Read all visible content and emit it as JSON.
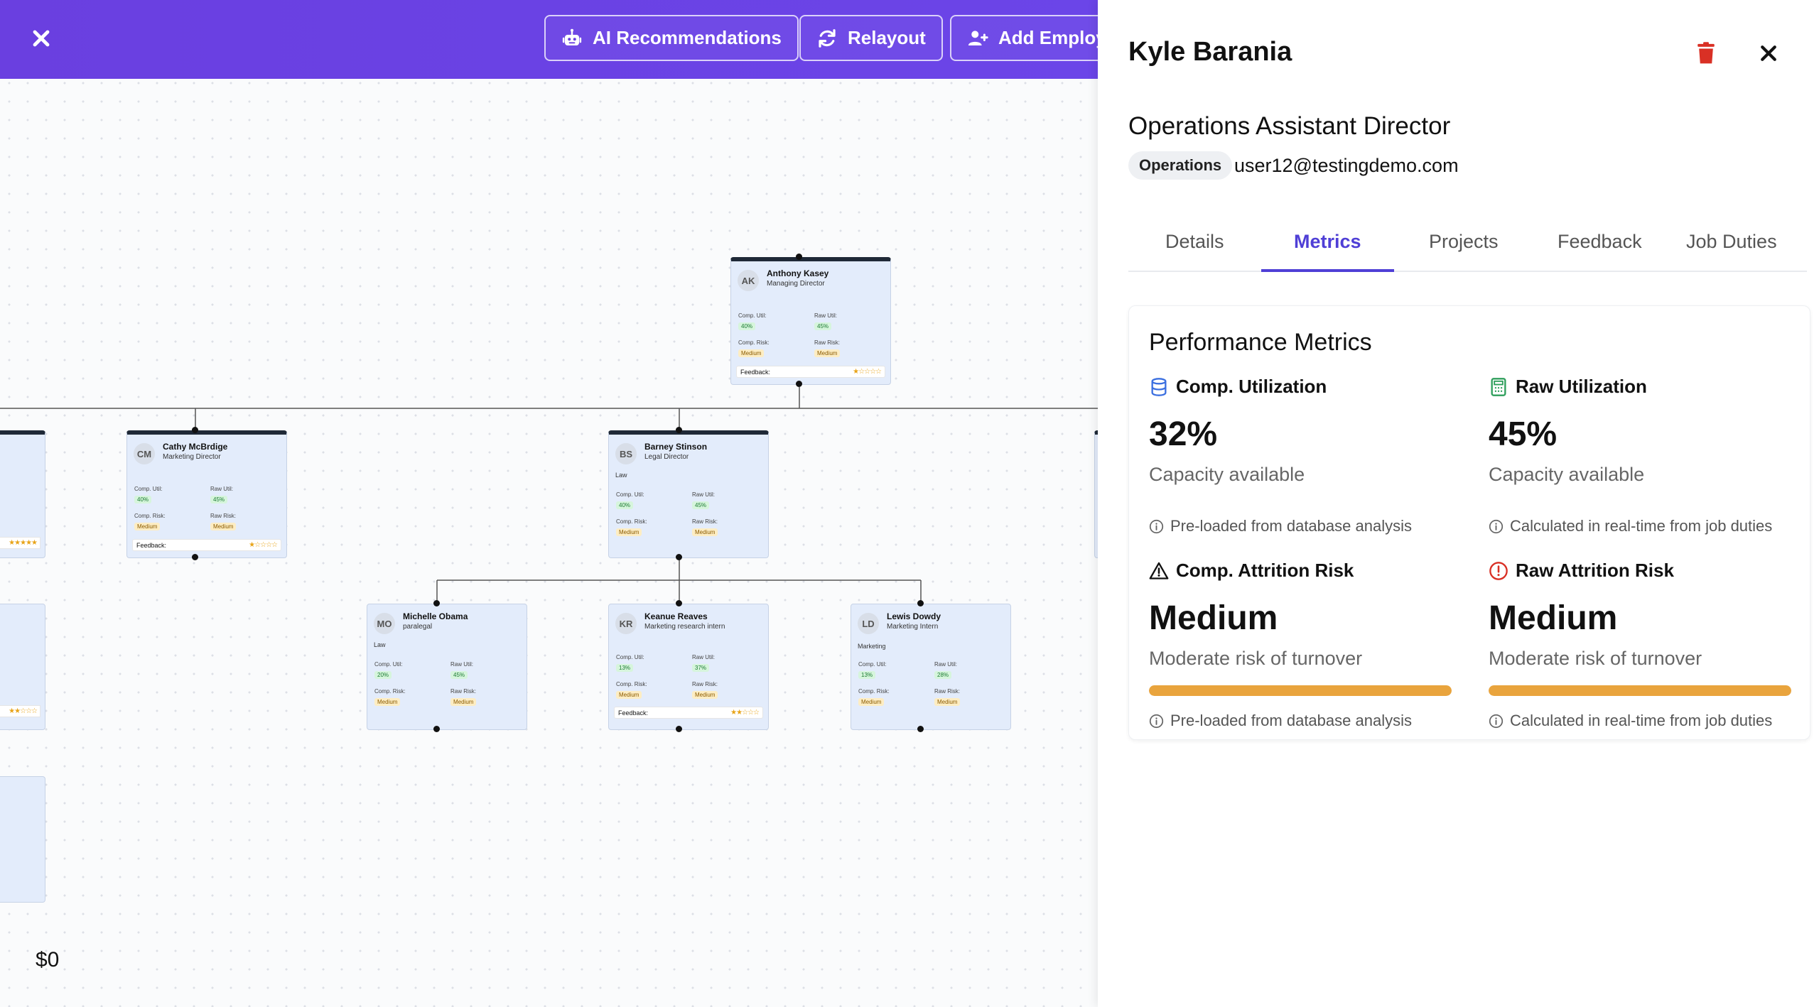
{
  "toolbar": {
    "close_icon": "close-icon",
    "ai_label": "AI Recommendations",
    "relayout_label": "Relayout",
    "add_label": "Add Employe"
  },
  "org_chart": {
    "labels": {
      "comp_util": "Comp. Util:",
      "raw_util": "Raw Util:",
      "comp_risk": "Comp. Risk:",
      "raw_risk": "Raw Risk:",
      "feedback": "Feedback:"
    },
    "cards": [
      {
        "initials": "AK",
        "name": "Anthony Kasey",
        "title": "Managing Director",
        "dept": "",
        "comp_util": "40%",
        "raw_util": "45%",
        "comp_risk": "Medium",
        "raw_risk": "Medium",
        "stars": "★☆☆☆☆"
      },
      {
        "initials": "CM",
        "name": "Cathy McBrdige",
        "title": "Marketing Director",
        "dept": "",
        "comp_util": "40%",
        "raw_util": "45%",
        "comp_risk": "Medium",
        "raw_risk": "Medium",
        "stars": "★☆☆☆☆"
      },
      {
        "initials": "BS",
        "name": "Barney Stinson",
        "title": "Legal Director",
        "dept": "Law",
        "comp_util": "40%",
        "raw_util": "45%",
        "comp_risk": "Medium",
        "raw_risk": "Medium",
        "stars": ""
      },
      {
        "initials": "MO",
        "name": "Michelle Obama",
        "title": "paralegal",
        "dept": "Law",
        "comp_util": "20%",
        "raw_util": "45%",
        "comp_risk": "Medium",
        "raw_risk": "Medium",
        "stars": ""
      },
      {
        "initials": "KR",
        "name": "Keanue Reaves",
        "title": "Marketing research intern",
        "dept": "",
        "comp_util": "13%",
        "raw_util": "37%",
        "comp_risk": "Medium",
        "raw_risk": "Medium",
        "stars": "★★☆☆☆"
      },
      {
        "initials": "LD",
        "name": "Lewis Dowdy",
        "title": "Marketing Intern",
        "dept": "Marketing",
        "comp_util": "13%",
        "raw_util": "28%",
        "comp_risk": "Medium",
        "raw_risk": "Medium",
        "stars": ""
      }
    ],
    "left_edge_stars_1": "★★★★★",
    "left_edge_stars_2": "★★☆☆☆",
    "budget": "$0"
  },
  "panel": {
    "name": "Kyle Barania",
    "role": "Operations Assistant Director",
    "department": "Operations",
    "email": "user12@testingdemo.com",
    "tabs": [
      "Details",
      "Metrics",
      "Projects",
      "Feedback",
      "Job Duties"
    ],
    "active_tab": "Metrics",
    "metrics": {
      "title": "Performance Metrics",
      "comp_util": {
        "label": "Comp. Utilization",
        "value": "32%",
        "sub": "Capacity available",
        "note": "Pre-loaded from database analysis",
        "icon": "database-icon"
      },
      "raw_util": {
        "label": "Raw Utilization",
        "value": "45%",
        "sub": "Capacity available",
        "note": "Calculated in real-time from job duties",
        "icon": "calculator-icon"
      },
      "comp_risk": {
        "label": "Comp. Attrition Risk",
        "value": "Medium",
        "sub": "Moderate risk of turnover",
        "note": "Pre-loaded from database analysis",
        "icon": "warning-triangle-icon",
        "level": 1.0
      },
      "raw_risk": {
        "label": "Raw Attrition Risk",
        "value": "Medium",
        "sub": "Moderate risk of turnover",
        "note": "Calculated in real-time from job duties",
        "icon": "alert-circle-icon",
        "level": 1.0
      }
    }
  },
  "colors": {
    "accent": "#6a3fe0",
    "tab_active": "#4f3fd6",
    "risk_bar": "#e9a43d",
    "danger": "#d93025"
  }
}
